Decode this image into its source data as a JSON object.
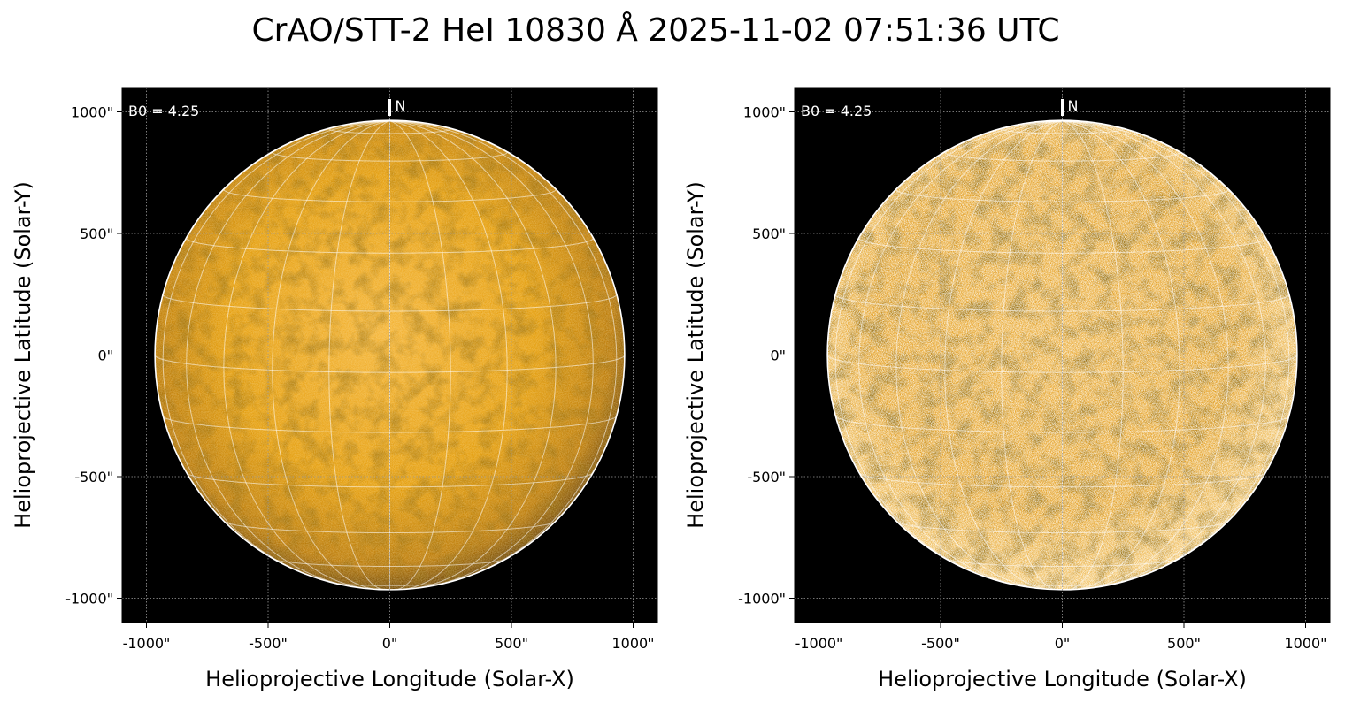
{
  "title": "CrAO/STT-2 HeI 10830 Å 2025-11-02 07:51:36 UTC",
  "colors": {
    "background": "#000000",
    "disk_base": "#e09a00",
    "disk_bright": "#ffd070",
    "disk_dark": "#7a4a00",
    "limb": "#ffffff",
    "grid": "#ffffff"
  },
  "panels": [
    {
      "name": "left",
      "style": "original",
      "annotation": "B0 = 4.25",
      "north_label": "N",
      "xlabel": "Helioprojective Longitude (Solar-X)",
      "ylabel": "Helioprojective Latitude (Solar-Y)",
      "xticks": [
        "-1000\"",
        "-500\"",
        "0\"",
        "500\"",
        "1000\""
      ],
      "yticks": [
        "1000\"",
        "500\"",
        "0\"",
        "-500\"",
        "-1000\""
      ],
      "tick_values": [
        -1000,
        -500,
        0,
        500,
        1000
      ],
      "range": [
        -1100,
        1100
      ]
    },
    {
      "name": "right",
      "style": "enhanced",
      "annotation": "B0 = 4.25",
      "north_label": "N",
      "xlabel": "Helioprojective Longitude (Solar-X)",
      "ylabel": "Helioprojective Latitude (Solar-Y)",
      "xticks": [
        "-1000\"",
        "-500\"",
        "0\"",
        "500\"",
        "1000\""
      ],
      "yticks": [
        "1000\"",
        "500\"",
        "0\"",
        "-500\"",
        "-1000\""
      ],
      "tick_values": [
        -1000,
        -500,
        0,
        500,
        1000
      ],
      "range": [
        -1100,
        1100
      ]
    }
  ],
  "solar_radius_arcsec": 965,
  "b0_degrees": 4.25
}
